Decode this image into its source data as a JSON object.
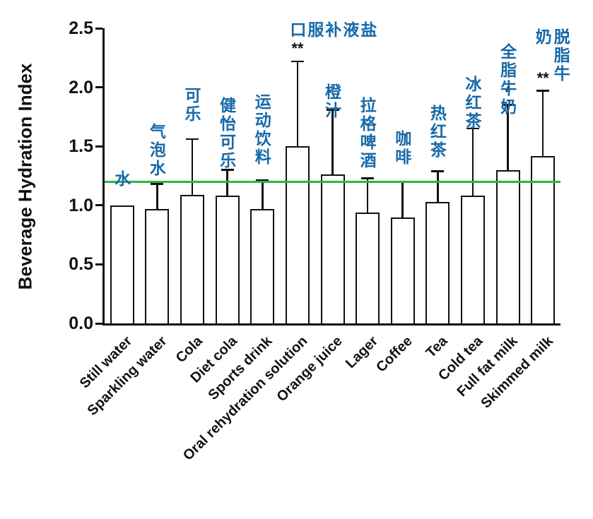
{
  "chart_data": {
    "type": "bar",
    "title": "",
    "xlabel": "",
    "ylabel": "Beverage Hydration Index",
    "ylim": [
      0,
      2.5
    ],
    "yticks": [
      "0.0",
      "0.5",
      "1.0",
      "1.5",
      "2.0",
      "2.5"
    ],
    "grid": false,
    "legend": "none",
    "bar_fill": "#ffffff",
    "bar_stroke": "#111111",
    "zh_label_color": "#1769a8",
    "reference_line": {
      "value": 1.2,
      "color": "#2db34b"
    },
    "categories": [
      "Still water",
      "Sparkling water",
      "Cola",
      "Diet cola",
      "Sports drink",
      "Oral rehydration solution",
      "Orange juice",
      "Lager",
      "Coffee",
      "Tea",
      "Cold tea",
      "Full fat milk",
      "Skimmed milk"
    ],
    "categories_zh": [
      "水",
      "气泡水",
      "可乐",
      "健怡可乐",
      "运动饮料",
      "口服补液盐",
      "橙汁",
      "拉格啤酒",
      "咖啡",
      "热红茶",
      "冰红茶",
      "全脂牛奶",
      "脱脂牛奶"
    ],
    "values": [
      1.0,
      0.97,
      1.09,
      1.08,
      0.97,
      1.5,
      1.26,
      0.94,
      0.9,
      1.03,
      1.08,
      1.3,
      1.42
    ],
    "error_top": [
      1.0,
      1.18,
      1.56,
      1.3,
      1.21,
      2.22,
      1.81,
      1.23,
      1.2,
      1.29,
      1.65,
      1.85,
      1.97
    ],
    "significance": [
      "",
      "",
      "",
      "",
      "",
      "**",
      "",
      "",
      "",
      "",
      "",
      "*",
      "**"
    ],
    "zh_label_base": [
      1.14,
      1.23,
      1.69,
      1.3,
      1.33,
      2.4,
      1.72,
      1.3,
      1.33,
      1.39,
      1.63,
      1.75,
      1.96
    ],
    "zh_label_horizontal_index": 5
  }
}
